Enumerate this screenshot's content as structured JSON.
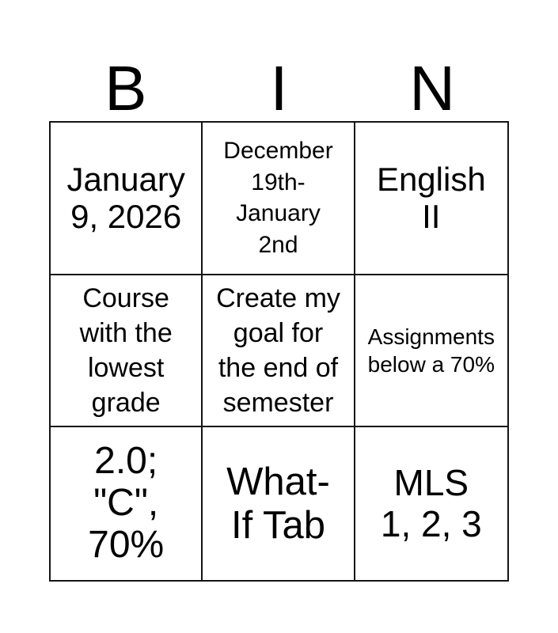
{
  "card": {
    "header_letters": [
      "B",
      "I",
      "N"
    ],
    "cells": [
      {
        "text": "January\n9, 2026"
      },
      {
        "text": "December\n19th-\nJanuary\n2nd"
      },
      {
        "text": "English\nII"
      },
      {
        "text": "Course\nwith the\nlowest\ngrade"
      },
      {
        "text": "Create my\ngoal for\nthe end of\nsemester"
      },
      {
        "text": "Assignments\nbelow a 70%"
      },
      {
        "text": "2.0;\n\"C\",\n70%"
      },
      {
        "text": "What-\nIf Tab"
      },
      {
        "text": "MLS\n1, 2, 3"
      }
    ],
    "colors": {
      "background": "#ffffff",
      "grid_line": "#141414",
      "text": "#000000"
    }
  }
}
